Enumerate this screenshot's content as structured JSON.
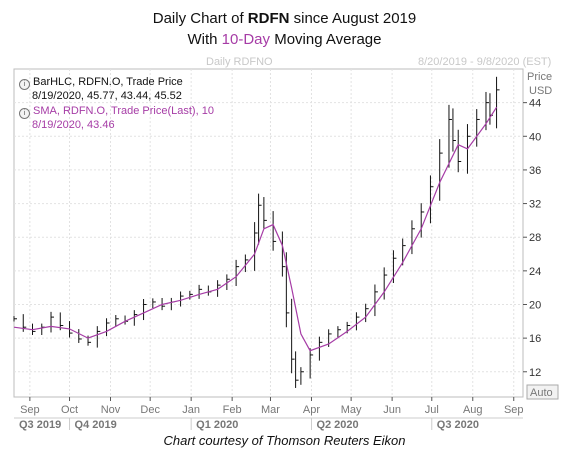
{
  "title": {
    "prefix": "Daily Chart of ",
    "ticker": "RDFN",
    "suffix": " since August 2019",
    "line2_prefix": "With ",
    "line2_highlight": "10-Day",
    "line2_suffix": " Moving Average"
  },
  "header": {
    "left": "Daily RDFNO",
    "right": "8/20/2019 - 9/8/2020 (EST)"
  },
  "legend": {
    "bar_label": "BarHLC, RDFN.O, Trade Price",
    "bar_values": "8/19/2020, 45.77, 43.44, 45.52",
    "sma_label": "SMA, RDFN.O, Trade Price(Last), 10",
    "sma_values": "8/19/2020, 43.46"
  },
  "credit": "Chart courtesy of Thomson Reuters Eikon",
  "colors": {
    "bars": "#111111",
    "sma": "#a63ca6",
    "grid": "#e2e2e2",
    "axis": "#555555"
  },
  "chart_data": {
    "type": "line",
    "x_range": [
      "2019-08-20",
      "2020-09-08"
    ],
    "y_range": [
      9,
      48
    ],
    "y_axis": {
      "label": "Price",
      "unit": "USD",
      "ticks": [
        12,
        16,
        20,
        24,
        28,
        32,
        36,
        40,
        44
      ],
      "auto_label": "Auto"
    },
    "x_axis": {
      "month_labels": [
        {
          "label": "Sep",
          "date": "2019-09-01"
        },
        {
          "label": "Oct",
          "date": "2019-10-01"
        },
        {
          "label": "Nov",
          "date": "2019-11-01"
        },
        {
          "label": "Dec",
          "date": "2019-12-01"
        },
        {
          "label": "Jan",
          "date": "2020-01-01"
        },
        {
          "label": "Feb",
          "date": "2020-02-01"
        },
        {
          "label": "Mar",
          "date": "2020-03-01"
        },
        {
          "label": "Apr",
          "date": "2020-04-01"
        },
        {
          "label": "May",
          "date": "2020-05-01"
        },
        {
          "label": "Jun",
          "date": "2020-06-01"
        },
        {
          "label": "Jul",
          "date": "2020-07-01"
        },
        {
          "label": "Aug",
          "date": "2020-08-01"
        },
        {
          "label": "Sep",
          "date": "2020-09-01"
        }
      ],
      "quarter_labels": [
        {
          "label": "Q3 2019",
          "date": "2019-08-20"
        },
        {
          "label": "Q4 2019",
          "date": "2019-10-01"
        },
        {
          "label": "Q1 2020",
          "date": "2020-01-01"
        },
        {
          "label": "Q2 2020",
          "date": "2020-04-01"
        },
        {
          "label": "Q3 2020",
          "date": "2020-07-01"
        }
      ]
    },
    "series": [
      {
        "name": "BarHLC, RDFN.O, Trade Price",
        "type": "bar_hlc",
        "points": [
          {
            "date": "2019-08-20",
            "close": 18.3
          },
          {
            "date": "2019-08-27",
            "close": 17.3
          },
          {
            "date": "2019-09-03",
            "close": 16.8
          },
          {
            "date": "2019-09-10",
            "close": 17.3
          },
          {
            "date": "2019-09-17",
            "close": 18.5
          },
          {
            "date": "2019-09-24",
            "close": 17.5
          },
          {
            "date": "2019-10-01",
            "close": 16.6
          },
          {
            "date": "2019-10-08",
            "close": 15.9
          },
          {
            "date": "2019-10-15",
            "close": 15.5
          },
          {
            "date": "2019-10-22",
            "close": 16.8
          },
          {
            "date": "2019-10-29",
            "close": 17.8
          },
          {
            "date": "2019-11-05",
            "close": 18.3
          },
          {
            "date": "2019-11-12",
            "close": 18.0
          },
          {
            "date": "2019-11-19",
            "close": 18.8
          },
          {
            "date": "2019-11-26",
            "close": 20.0
          },
          {
            "date": "2019-12-03",
            "close": 20.3
          },
          {
            "date": "2019-12-10",
            "close": 19.8
          },
          {
            "date": "2019-12-17",
            "close": 20.3
          },
          {
            "date": "2019-12-24",
            "close": 21.0
          },
          {
            "date": "2019-12-31",
            "close": 21.2
          },
          {
            "date": "2020-01-07",
            "close": 21.8
          },
          {
            "date": "2020-01-14",
            "close": 21.5
          },
          {
            "date": "2020-01-21",
            "close": 22.3
          },
          {
            "date": "2020-01-28",
            "close": 23.0
          },
          {
            "date": "2020-02-04",
            "close": 24.5
          },
          {
            "date": "2020-02-11",
            "close": 25.3
          },
          {
            "date": "2020-02-18",
            "close": 28.5
          },
          {
            "date": "2020-02-21",
            "close": 31.8
          },
          {
            "date": "2020-02-25",
            "close": 30.0
          },
          {
            "date": "2020-03-03",
            "close": 27.5
          },
          {
            "date": "2020-03-10",
            "close": 24.5
          },
          {
            "date": "2020-03-13",
            "close": 19.0
          },
          {
            "date": "2020-03-17",
            "close": 13.5
          },
          {
            "date": "2020-03-20",
            "close": 11.0
          },
          {
            "date": "2020-03-24",
            "close": 12.0
          },
          {
            "date": "2020-03-31",
            "close": 14.0
          },
          {
            "date": "2020-04-07",
            "close": 15.5
          },
          {
            "date": "2020-04-14",
            "close": 16.5
          },
          {
            "date": "2020-04-21",
            "close": 17.0
          },
          {
            "date": "2020-04-28",
            "close": 17.5
          },
          {
            "date": "2020-05-05",
            "close": 18.5
          },
          {
            "date": "2020-05-12",
            "close": 19.5
          },
          {
            "date": "2020-05-19",
            "close": 21.5
          },
          {
            "date": "2020-05-26",
            "close": 23.5
          },
          {
            "date": "2020-06-02",
            "close": 25.5
          },
          {
            "date": "2020-06-09",
            "close": 27.0
          },
          {
            "date": "2020-06-16",
            "close": 29.0
          },
          {
            "date": "2020-06-23",
            "close": 31.0
          },
          {
            "date": "2020-06-30",
            "close": 34.0
          },
          {
            "date": "2020-07-07",
            "close": 38.0
          },
          {
            "date": "2020-07-14",
            "close": 42.0
          },
          {
            "date": "2020-07-17",
            "close": 39.5
          },
          {
            "date": "2020-07-21",
            "close": 37.0
          },
          {
            "date": "2020-07-28",
            "close": 40.0
          },
          {
            "date": "2020-08-04",
            "close": 42.0
          },
          {
            "date": "2020-08-11",
            "close": 44.0
          },
          {
            "date": "2020-08-14",
            "close": 42.5
          },
          {
            "date": "2020-08-19",
            "close": 45.52
          }
        ]
      },
      {
        "name": "SMA, RDFN.O, Trade Price(Last), 10",
        "type": "line",
        "points": [
          {
            "date": "2019-08-20",
            "value": 17.3
          },
          {
            "date": "2019-09-03",
            "value": 17.0
          },
          {
            "date": "2019-09-17",
            "value": 17.4
          },
          {
            "date": "2019-10-01",
            "value": 17.1
          },
          {
            "date": "2019-10-15",
            "value": 16.0
          },
          {
            "date": "2019-10-29",
            "value": 16.8
          },
          {
            "date": "2019-11-12",
            "value": 18.0
          },
          {
            "date": "2019-11-26",
            "value": 19.0
          },
          {
            "date": "2019-12-10",
            "value": 20.0
          },
          {
            "date": "2019-12-24",
            "value": 20.5
          },
          {
            "date": "2020-01-07",
            "value": 21.2
          },
          {
            "date": "2020-01-21",
            "value": 21.8
          },
          {
            "date": "2020-02-04",
            "value": 23.3
          },
          {
            "date": "2020-02-18",
            "value": 26.0
          },
          {
            "date": "2020-02-25",
            "value": 29.0
          },
          {
            "date": "2020-03-03",
            "value": 29.5
          },
          {
            "date": "2020-03-10",
            "value": 27.0
          },
          {
            "date": "2020-03-17",
            "value": 22.0
          },
          {
            "date": "2020-03-24",
            "value": 16.5
          },
          {
            "date": "2020-03-31",
            "value": 14.5
          },
          {
            "date": "2020-04-14",
            "value": 15.3
          },
          {
            "date": "2020-04-28",
            "value": 16.8
          },
          {
            "date": "2020-05-12",
            "value": 18.5
          },
          {
            "date": "2020-05-26",
            "value": 21.5
          },
          {
            "date": "2020-06-09",
            "value": 25.0
          },
          {
            "date": "2020-06-23",
            "value": 29.0
          },
          {
            "date": "2020-07-07",
            "value": 34.5
          },
          {
            "date": "2020-07-21",
            "value": 39.0
          },
          {
            "date": "2020-07-28",
            "value": 38.5
          },
          {
            "date": "2020-08-11",
            "value": 41.5
          },
          {
            "date": "2020-08-19",
            "value": 43.46
          }
        ]
      }
    ]
  }
}
